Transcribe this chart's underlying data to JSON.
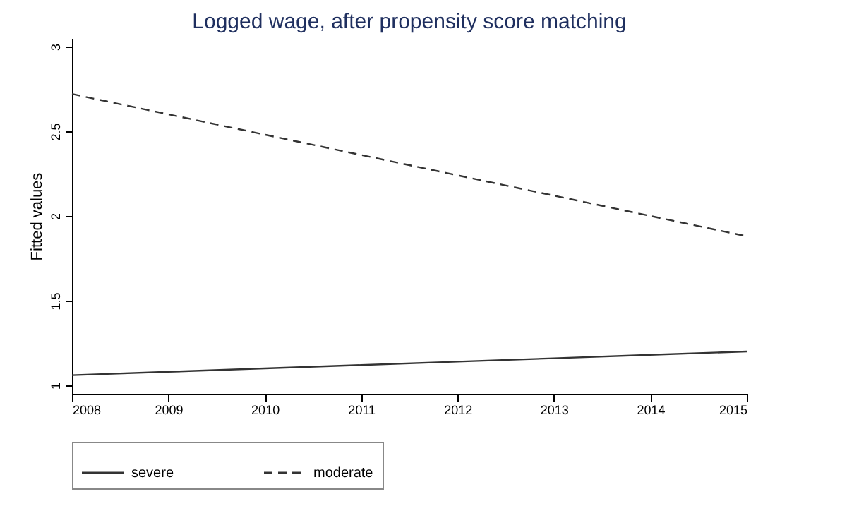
{
  "chart_data": {
    "type": "line",
    "title": "Logged wage, after propensity score matching",
    "ylabel": "Fitted values",
    "x": [
      2008,
      2009,
      2010,
      2011,
      2012,
      2013,
      2014,
      2015
    ],
    "series": [
      {
        "name": "severe",
        "color": "#333333",
        "line_style": "solid",
        "values": [
          1.06,
          1.08,
          1.1,
          1.12,
          1.14,
          1.16,
          1.18,
          1.2
        ]
      },
      {
        "name": "moderate",
        "color": "#333333",
        "line_style": "dashed",
        "values": [
          2.72,
          2.6,
          2.48,
          2.36,
          2.24,
          2.12,
          2.0,
          1.88
        ]
      }
    ],
    "xlim": [
      2008,
      2015
    ],
    "xticks": [
      2008,
      2009,
      2010,
      2011,
      2012,
      2013,
      2014,
      2015
    ],
    "ylim": [
      0.95,
      3.05
    ],
    "yticks": [
      1,
      1.5,
      2,
      2.5,
      3
    ],
    "grid": false,
    "legend": "bottom",
    "marker": "none"
  }
}
